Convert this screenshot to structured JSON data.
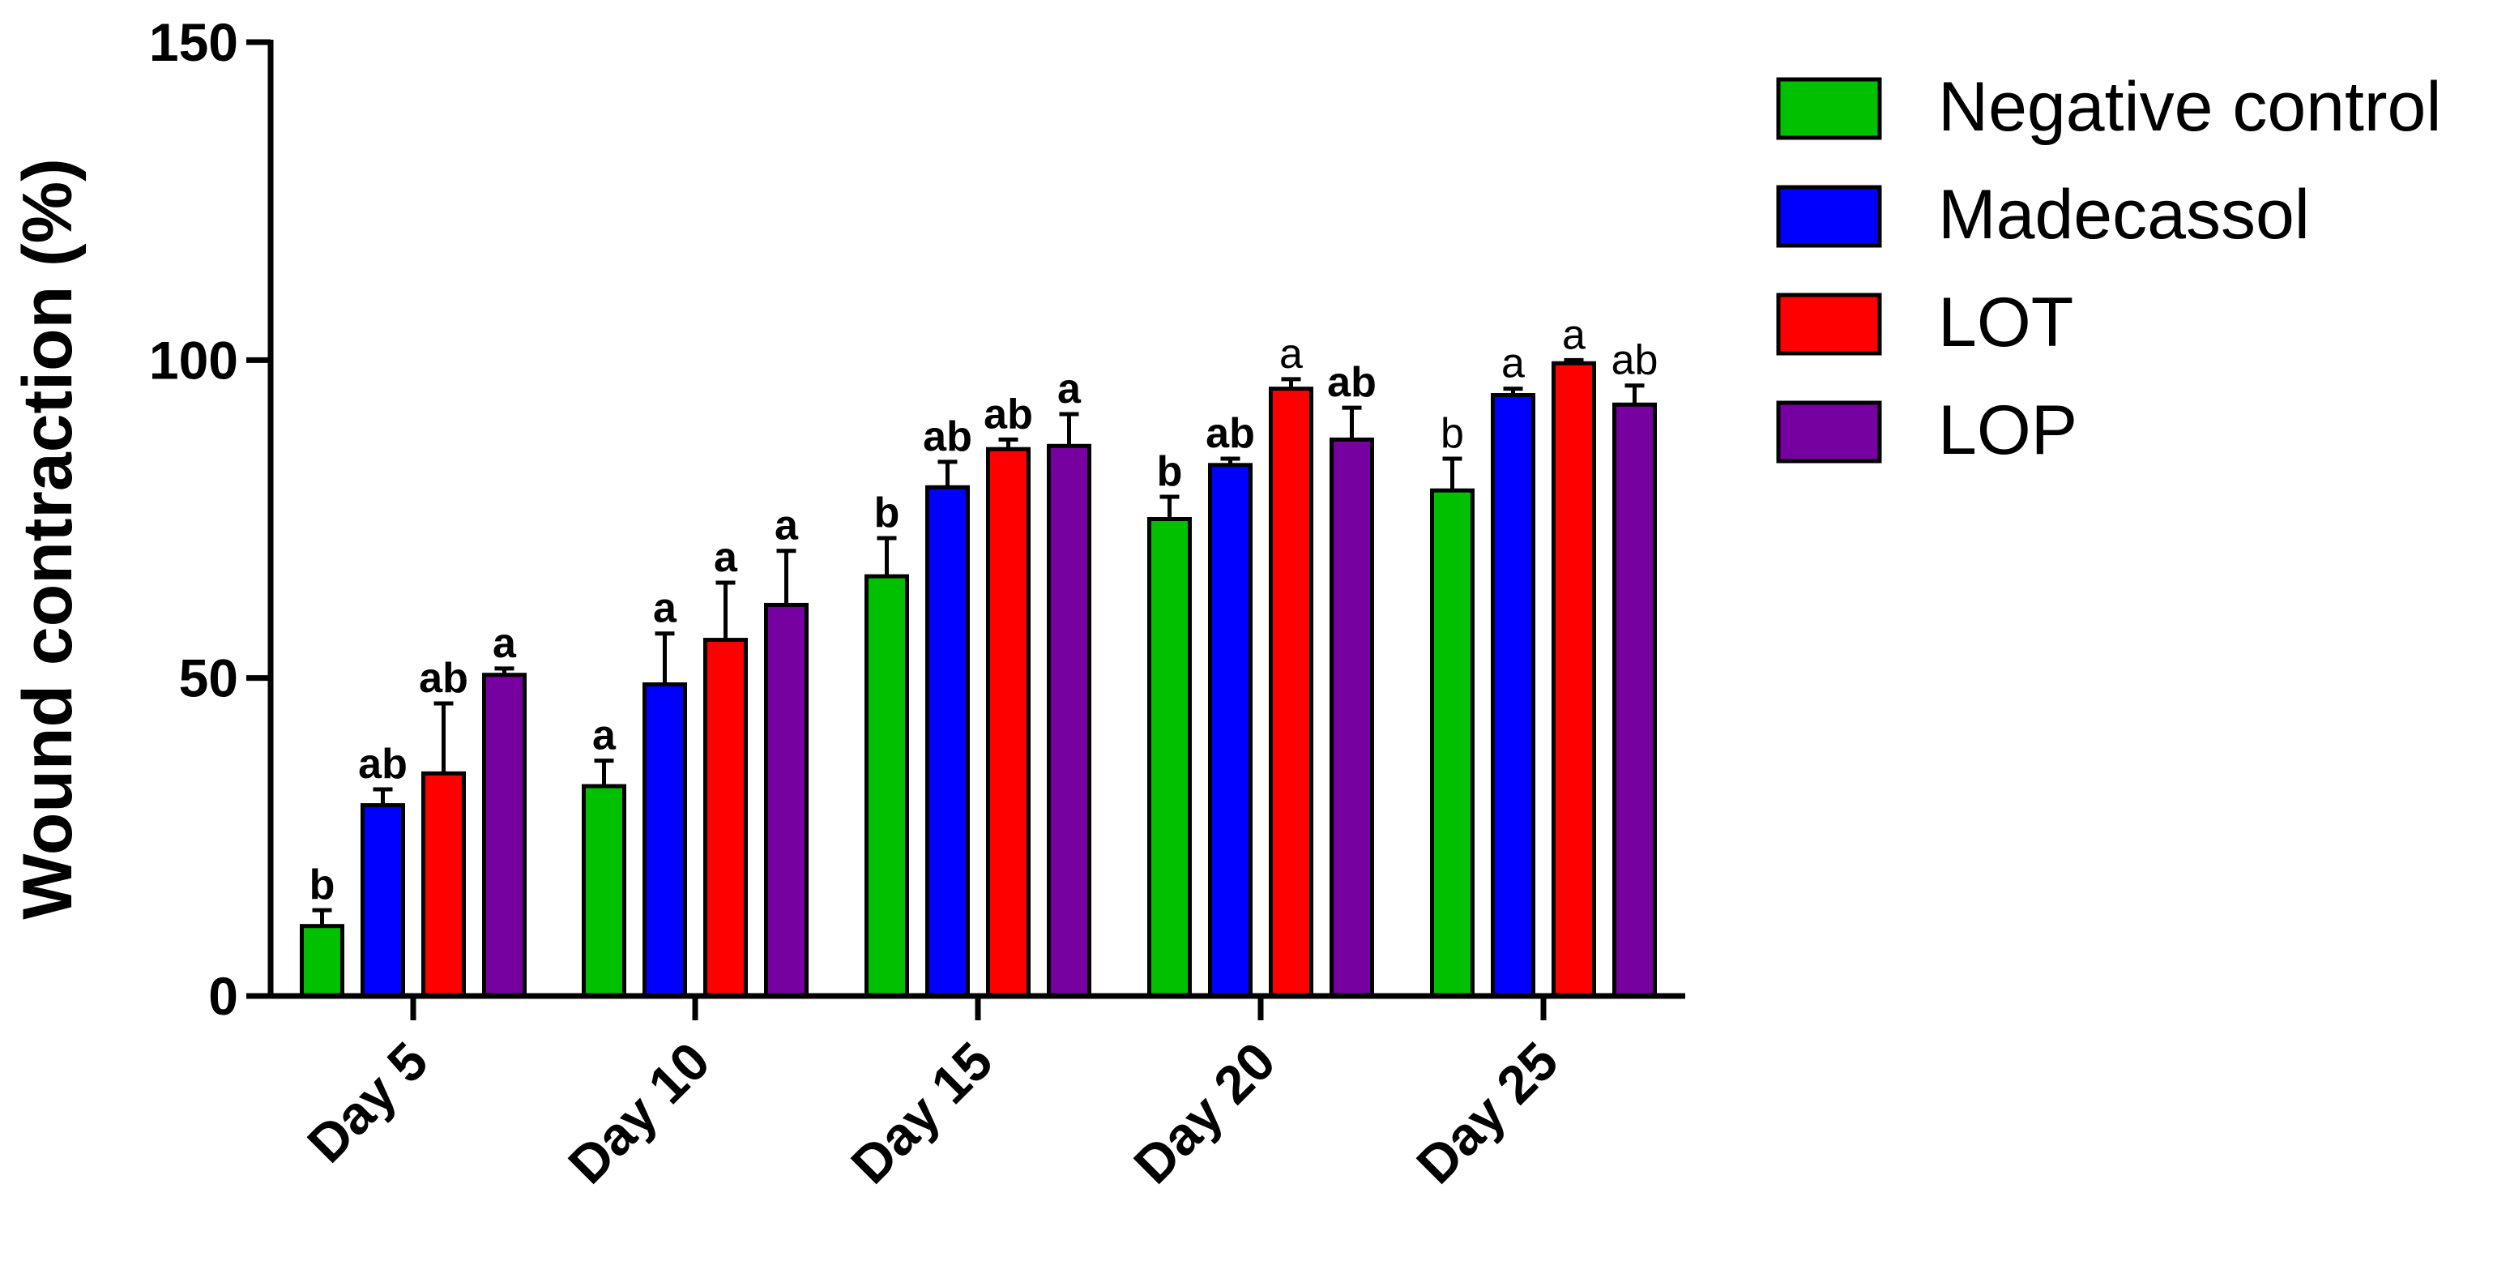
{
  "chart_data": {
    "type": "bar",
    "title": "",
    "xlabel": "",
    "ylabel": "Wound contraction (%)",
    "ylim": [
      0,
      150
    ],
    "yticks": [
      "0",
      "50",
      "100",
      "150"
    ],
    "categories": [
      "Day 5",
      "Day 10",
      "Day 15",
      "Day 20",
      "Day 25"
    ],
    "series": [
      {
        "name": "Negative control",
        "color": "#00c000",
        "values": [
          11,
          33,
          66,
          75,
          79.5
        ],
        "errors": [
          2.5,
          4,
          6,
          3.5,
          5
        ],
        "labels": [
          "b",
          "a",
          "b",
          "b",
          "b"
        ],
        "label_bold": [
          true,
          true,
          true,
          true,
          false
        ]
      },
      {
        "name": "Madecassol",
        "color": "#0000ff",
        "values": [
          30,
          49,
          80,
          83.5,
          94.5
        ],
        "errors": [
          2.5,
          8,
          4,
          1,
          1
        ],
        "labels": [
          "ab",
          "a",
          "ab",
          "ab",
          "a"
        ],
        "label_bold": [
          true,
          true,
          true,
          true,
          false
        ]
      },
      {
        "name": "LOT",
        "color": "#ff0000",
        "values": [
          35,
          56,
          86,
          95.5,
          99.5
        ],
        "errors": [
          11,
          9,
          1.5,
          1.5,
          0.5
        ],
        "labels": [
          "ab",
          "a",
          "ab",
          "a",
          "a"
        ],
        "label_bold": [
          true,
          true,
          true,
          false,
          false
        ]
      },
      {
        "name": "LOP",
        "color": "#7700a0",
        "values": [
          50.5,
          61.5,
          86.5,
          87.5,
          93
        ],
        "errors": [
          1,
          8.5,
          5,
          5,
          3
        ],
        "labels": [
          "a",
          "a",
          "a",
          "ab",
          "ab"
        ],
        "label_bold": [
          true,
          true,
          true,
          true,
          false
        ]
      }
    ],
    "legend_position": "top-right"
  }
}
